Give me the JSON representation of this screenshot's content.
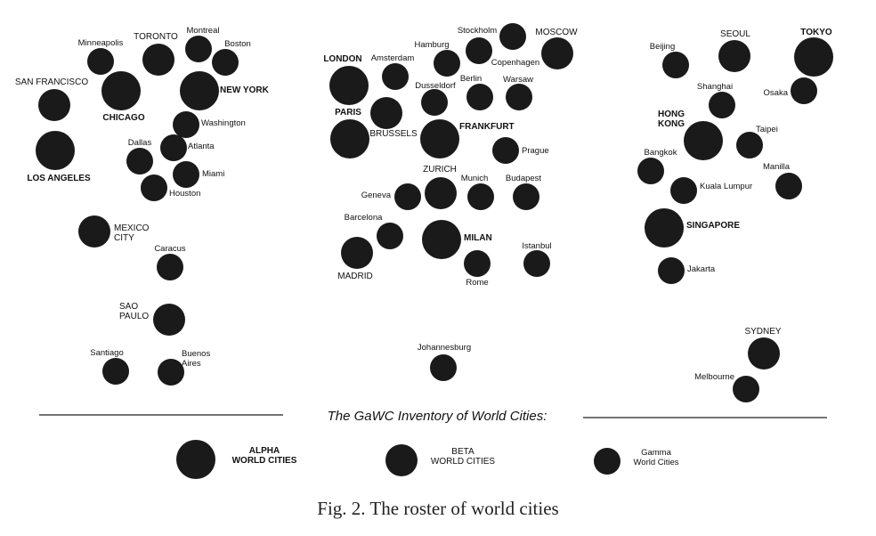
{
  "cities": [
    {
      "name": "Minneapolis",
      "tier": "gamma"
    },
    {
      "name": "TORONTO",
      "tier": "beta"
    },
    {
      "name": "Montreal",
      "tier": "gamma"
    },
    {
      "name": "Boston",
      "tier": "gamma"
    },
    {
      "name": "SAN FRANCISCO",
      "tier": "beta"
    },
    {
      "name": "CHICAGO",
      "tier": "alpha"
    },
    {
      "name": "NEW YORK",
      "tier": "alpha"
    },
    {
      "name": "Washington",
      "tier": "gamma"
    },
    {
      "name": "LOS ANGELES",
      "tier": "alpha"
    },
    {
      "name": "Dallas",
      "tier": "gamma"
    },
    {
      "name": "Atlanta",
      "tier": "gamma"
    },
    {
      "name": "Miami",
      "tier": "gamma"
    },
    {
      "name": "Houston",
      "tier": "gamma"
    },
    {
      "name": "MEXICO CITY",
      "tier": "beta"
    },
    {
      "name": "Caracus",
      "tier": "gamma"
    },
    {
      "name": "SAO PAULO",
      "tier": "beta"
    },
    {
      "name": "Santiago",
      "tier": "gamma"
    },
    {
      "name": "Buenos Aires",
      "tier": "gamma"
    },
    {
      "name": "Stockholm",
      "tier": "gamma"
    },
    {
      "name": "Hamburg",
      "tier": "gamma"
    },
    {
      "name": "Copenhagen",
      "tier": "gamma"
    },
    {
      "name": "MOSCOW",
      "tier": "beta"
    },
    {
      "name": "LONDON",
      "tier": "alpha"
    },
    {
      "name": "Amsterdam",
      "tier": "gamma"
    },
    {
      "name": "Berlin",
      "tier": "gamma"
    },
    {
      "name": "Warsaw",
      "tier": "gamma"
    },
    {
      "name": "Dusseldorf",
      "tier": "gamma"
    },
    {
      "name": "PARIS",
      "tier": "alpha"
    },
    {
      "name": "BRUSSELS",
      "tier": "beta"
    },
    {
      "name": "FRANKFURT",
      "tier": "alpha"
    },
    {
      "name": "Prague",
      "tier": "gamma"
    },
    {
      "name": "ZURICH",
      "tier": "beta"
    },
    {
      "name": "Munich",
      "tier": "gamma"
    },
    {
      "name": "Budapest",
      "tier": "gamma"
    },
    {
      "name": "Geneva",
      "tier": "gamma"
    },
    {
      "name": "Barcelona",
      "tier": "gamma"
    },
    {
      "name": "MILAN",
      "tier": "alpha"
    },
    {
      "name": "Istanbul",
      "tier": "gamma"
    },
    {
      "name": "MADRID",
      "tier": "beta"
    },
    {
      "name": "Rome",
      "tier": "gamma"
    },
    {
      "name": "Johannesburg",
      "tier": "gamma"
    },
    {
      "name": "Beijing",
      "tier": "gamma"
    },
    {
      "name": "SEOUL",
      "tier": "beta"
    },
    {
      "name": "TOKYO",
      "tier": "alpha"
    },
    {
      "name": "Shanghai",
      "tier": "gamma"
    },
    {
      "name": "Osaka",
      "tier": "gamma"
    },
    {
      "name": "HONG KONG",
      "tier": "alpha"
    },
    {
      "name": "Taipei",
      "tier": "gamma"
    },
    {
      "name": "Bangkok",
      "tier": "gamma"
    },
    {
      "name": "Manilla",
      "tier": "gamma"
    },
    {
      "name": "Kuala Lumpur",
      "tier": "gamma"
    },
    {
      "name": "SINGAPORE",
      "tier": "alpha"
    },
    {
      "name": "Jakarta",
      "tier": "gamma"
    },
    {
      "name": "SYDNEY",
      "tier": "beta"
    },
    {
      "name": "Melbourne",
      "tier": "gamma"
    }
  ],
  "legend": {
    "title": "The GaWC Inventory of World Cities:",
    "items": [
      {
        "tier": "alpha",
        "lines": [
          "ALPHA",
          "WORLD CITIES"
        ]
      },
      {
        "tier": "beta",
        "lines": [
          "BETA",
          "WORLD CITIES"
        ]
      },
      {
        "tier": "gamma",
        "lines": [
          "Gamma",
          "World Cities"
        ]
      }
    ]
  },
  "caption": "Fig. 2.   The roster of world cities",
  "colors": {
    "dot": "#1a1a1a",
    "text": "#111111",
    "rule": "#222222"
  }
}
